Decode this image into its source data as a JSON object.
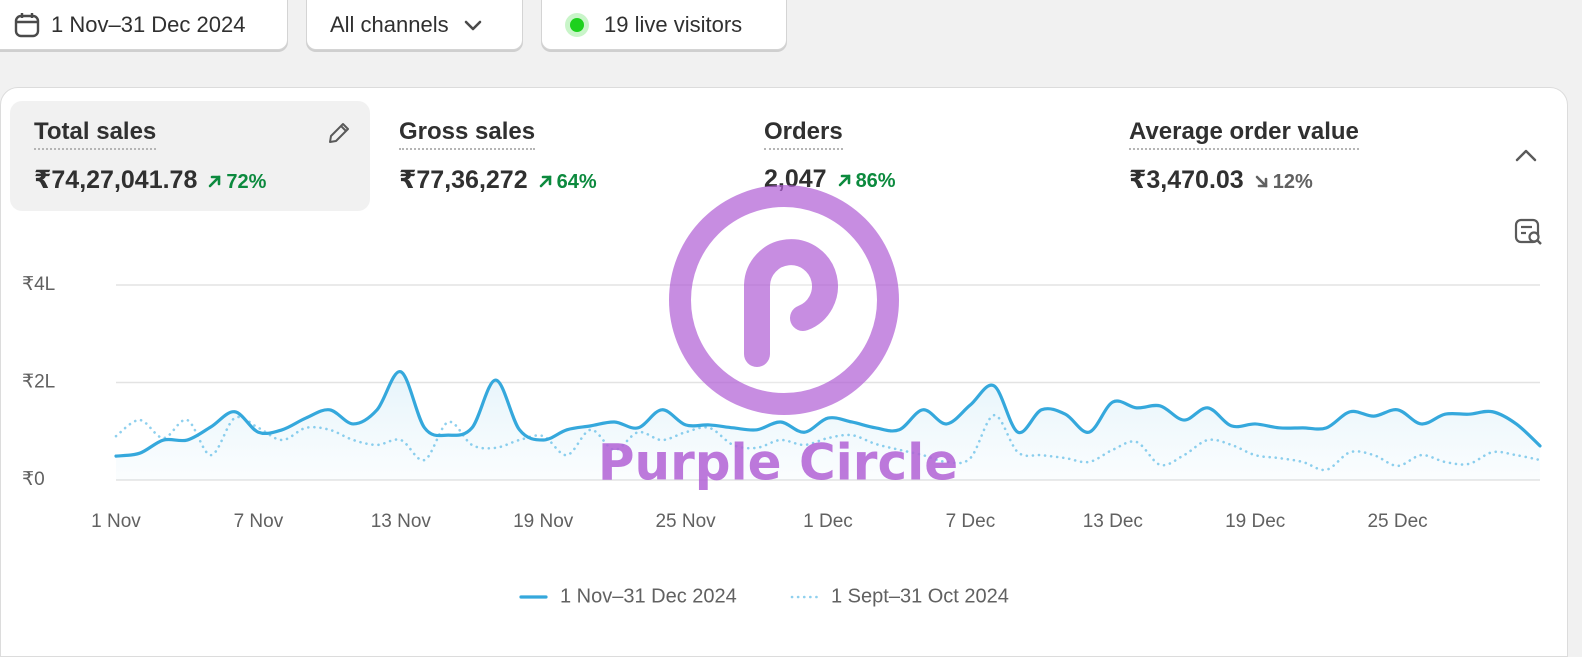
{
  "filters": {
    "date_range": "1 Nov–31 Dec 2024",
    "channel": "All channels",
    "live_visitors": "19 live visitors"
  },
  "metrics": [
    {
      "title": "Total sales",
      "value": "₹74,27,041.78",
      "change": "72%",
      "trend": "up"
    },
    {
      "title": "Gross sales",
      "value": "₹77,36,272",
      "change": "64%",
      "trend": "up"
    },
    {
      "title": "Orders",
      "value": "2,047",
      "change": "86%",
      "trend": "up"
    },
    {
      "title": "Average order value",
      "value": "₹3,470.03",
      "change": "12%",
      "trend": "down"
    }
  ],
  "watermark": "Purple Circle",
  "chart_data": {
    "type": "line",
    "categories": [
      "1 Nov",
      null,
      null,
      null,
      null,
      null,
      "7 Nov",
      null,
      null,
      null,
      null,
      null,
      "13 Nov",
      null,
      null,
      null,
      null,
      null,
      "19 Nov",
      null,
      null,
      null,
      null,
      null,
      "25 Nov",
      null,
      null,
      null,
      null,
      null,
      "1 Dec",
      null,
      null,
      null,
      null,
      null,
      "7 Dec",
      null,
      null,
      null,
      null,
      null,
      "13 Dec",
      null,
      null,
      null,
      null,
      null,
      "19 Dec",
      null,
      null,
      null,
      null,
      null,
      "25 Dec",
      null,
      null,
      null,
      null,
      null,
      null
    ],
    "series": [
      {
        "name": "1 Nov–31 Dec 2024",
        "color": "#35a8dc",
        "style": "solid",
        "values": [
          49000,
          55000,
          82000,
          82000,
          109000,
          140000,
          98000,
          103000,
          127000,
          144000,
          115000,
          144000,
          222000,
          107000,
          92000,
          107000,
          205000,
          103000,
          82000,
          103000,
          111000,
          119000,
          107000,
          144000,
          113000,
          113000,
          107000,
          103000,
          119000,
          98000,
          127000,
          119000,
          107000,
          103000,
          144000,
          115000,
          154000,
          193000,
          98000,
          144000,
          135000,
          98000,
          160000,
          148000,
          152000,
          123000,
          148000,
          111000,
          115000,
          107000,
          107000,
          107000,
          140000,
          131000,
          144000,
          115000,
          135000,
          135000,
          140000,
          115000,
          70000
        ]
      },
      {
        "name": "1 Sept–31 Oct 2024",
        "color": "#8fd0ee",
        "style": "dotted",
        "values": [
          90000,
          123000,
          86000,
          123000,
          51000,
          127000,
          107000,
          82000,
          107000,
          103000,
          82000,
          72000,
          82000,
          41000,
          119000,
          72000,
          66000,
          82000,
          90000,
          51000,
          103000,
          62000,
          98000,
          82000,
          98000,
          107000,
          72000,
          66000,
          82000,
          72000,
          86000,
          92000,
          74000,
          62000,
          51000,
          37000,
          45000,
          133000,
          57000,
          51000,
          45000,
          37000,
          62000,
          78000,
          31000,
          51000,
          82000,
          72000,
          51000,
          45000,
          37000,
          21000,
          57000,
          51000,
          29000,
          51000,
          37000,
          33000,
          57000,
          51000,
          41000
        ]
      }
    ],
    "ylim": [
      0,
      400000
    ],
    "yticks": [
      {
        "value": 0,
        "label": "₹0"
      },
      {
        "value": 200000,
        "label": "₹2L"
      },
      {
        "value": 400000,
        "label": "₹4L"
      }
    ],
    "grid": true
  }
}
